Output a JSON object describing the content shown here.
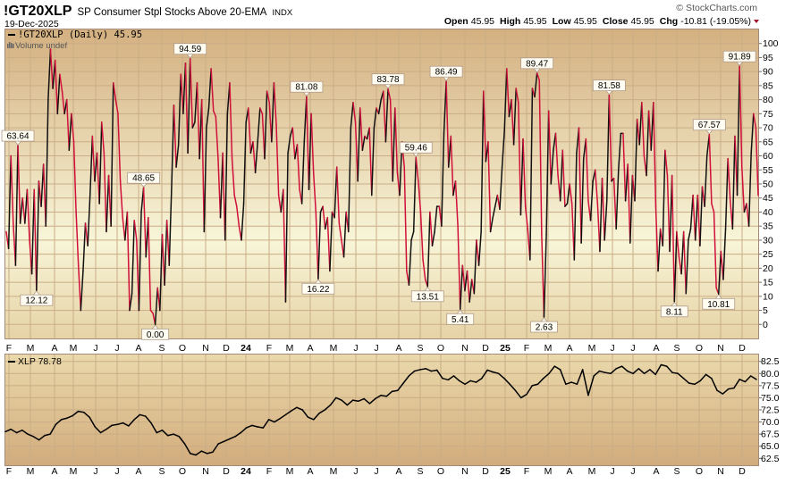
{
  "header": {
    "symbol": "!GT20XLP",
    "description": "SP Consumer Stpl Stocks Above 20-EMA",
    "exchange": "INDX",
    "date": "19-Dec-2025",
    "copyright": "© StockCharts.com",
    "ohlc": {
      "open_label": "Open",
      "open": "45.95",
      "high_label": "High",
      "high": "45.95",
      "low_label": "Low",
      "low": "45.95",
      "close_label": "Close",
      "close": "45.95",
      "chg_label": "Chg",
      "chg": "-10.81 (-19.05%)",
      "chg_direction": "down"
    }
  },
  "colors": {
    "rising": "#111111",
    "falling": "#d0103a",
    "down_arrow": "#a0102a",
    "panel_top": "#d4b080",
    "panel_mid": "#f8f5d8",
    "grid": "#c9ad86"
  },
  "chart_data": [
    {
      "type": "line",
      "legend": "!GT20XLP (Daily) 45.95",
      "volume_note": "Volume undef",
      "ylim": [
        0,
        100
      ],
      "y_ticks": [
        "100",
        "95",
        "90",
        "85",
        "80",
        "75",
        "70",
        "65",
        "60",
        "55",
        "50",
        "45",
        "40",
        "35",
        "30",
        "25",
        "20",
        "15",
        "10",
        "5",
        "0"
      ],
      "x_ticks": [
        "F",
        "M",
        "A",
        "M",
        "J",
        "J",
        "A",
        "S",
        "O",
        "N",
        "D",
        "24",
        "F",
        "M",
        "A",
        "M",
        "J",
        "J",
        "A",
        "S",
        "O",
        "N",
        "D",
        "25",
        "F",
        "M",
        "A",
        "M",
        "J",
        "J",
        "A",
        "S",
        "O",
        "N",
        "D"
      ],
      "grid": true,
      "coloring": "black when rising, red when falling",
      "values": [
        33,
        27,
        60,
        36,
        21,
        63.64,
        36,
        45,
        36,
        48,
        30,
        18,
        48,
        12.12,
        51,
        42,
        57,
        35,
        80,
        98,
        84,
        94,
        75,
        89,
        83,
        75,
        80,
        62,
        75,
        65,
        40,
        21,
        5,
        19,
        36,
        28,
        46,
        67,
        51,
        61,
        43,
        72,
        61,
        33,
        53,
        35,
        86,
        80,
        75,
        51,
        38,
        30,
        40,
        5,
        11,
        37,
        30,
        5,
        40,
        48.65,
        24,
        38,
        5,
        4,
        0,
        13,
        5,
        32,
        14,
        37,
        21,
        48,
        78,
        56,
        64,
        89,
        75,
        93,
        61,
        94.59,
        70,
        72,
        86,
        59,
        80,
        33,
        70,
        77,
        91,
        76,
        74,
        59,
        38,
        61,
        30,
        75,
        86,
        59,
        46,
        42,
        35,
        30,
        43,
        72,
        77,
        61,
        65,
        54,
        65,
        77,
        75,
        59,
        83,
        79,
        65,
        86,
        71,
        46,
        40,
        48,
        8,
        61,
        67,
        70,
        59,
        64,
        48,
        43,
        65,
        81.08,
        48,
        75,
        54,
        40,
        16.22,
        40,
        42,
        34,
        38,
        19,
        40,
        38,
        56,
        36,
        30,
        24,
        40,
        33,
        70,
        79,
        72,
        51,
        77,
        62,
        67,
        66,
        70,
        46,
        70,
        77,
        75,
        80,
        83,
        65,
        83.78,
        80,
        51,
        77,
        54,
        46,
        65,
        56,
        19,
        14,
        30,
        33,
        59.46,
        51,
        40,
        23,
        16,
        13.51,
        40,
        28,
        33,
        42,
        42,
        35,
        68,
        86.49,
        56,
        67,
        46,
        51,
        35,
        5.41,
        21,
        12,
        19,
        8,
        16,
        11,
        30,
        21,
        33,
        83,
        58,
        65,
        33,
        38,
        42,
        46,
        41,
        56,
        69,
        91,
        74,
        80,
        64,
        84,
        79,
        39,
        66,
        42,
        34,
        23,
        84,
        81,
        89.47,
        87,
        32,
        2.63,
        32,
        76,
        50,
        62,
        68,
        53,
        44,
        62,
        42,
        43,
        50,
        43,
        23,
        61,
        70,
        29,
        59,
        66,
        44,
        37,
        51,
        55,
        43,
        26,
        52,
        30,
        44,
        81.58,
        51,
        52,
        34,
        55,
        68,
        68,
        44,
        57,
        29,
        53,
        44,
        73,
        64,
        79,
        60,
        53,
        76,
        62,
        79,
        42,
        19,
        34,
        28,
        62,
        53,
        26,
        53,
        8.11,
        33,
        24,
        18,
        33,
        11,
        30,
        34,
        46,
        30,
        46,
        28,
        49,
        42,
        60,
        67.57,
        43,
        40,
        13,
        10.81,
        26,
        16,
        34,
        59,
        44,
        34,
        67,
        46,
        91.89,
        56,
        40,
        43,
        35,
        61,
        75,
        70,
        45.95
      ],
      "annotations": [
        {
          "value": 63.64,
          "text": "63.64",
          "position": "above"
        },
        {
          "value": 12.12,
          "text": "12.12",
          "position": "below"
        },
        {
          "value": 94.59,
          "text": "94.59",
          "position": "above"
        },
        {
          "value": 48.65,
          "text": "48.65",
          "position": "above"
        },
        {
          "value": 0,
          "text": "0.00",
          "position": "below"
        },
        {
          "value": 81.08,
          "text": "81.08",
          "position": "above"
        },
        {
          "value": 16.22,
          "text": "16.22",
          "position": "below"
        },
        {
          "value": 83.78,
          "text": "83.78",
          "position": "above"
        },
        {
          "value": 59.46,
          "text": "59.46",
          "position": "above"
        },
        {
          "value": 13.51,
          "text": "13.51",
          "position": "below"
        },
        {
          "value": 86.49,
          "text": "86.49",
          "position": "above"
        },
        {
          "value": 5.41,
          "text": "5.41",
          "position": "below"
        },
        {
          "value": 89.47,
          "text": "89.47",
          "position": "above"
        },
        {
          "value": 2.63,
          "text": "2.63",
          "position": "below"
        },
        {
          "value": 81.58,
          "text": "81.58",
          "position": "above"
        },
        {
          "value": 8.11,
          "text": "8.11",
          "position": "below"
        },
        {
          "value": 67.57,
          "text": "67.57",
          "position": "above"
        },
        {
          "value": 10.81,
          "text": "10.81",
          "position": "below"
        },
        {
          "value": 91.89,
          "text": "91.89",
          "position": "above"
        }
      ]
    },
    {
      "type": "line",
      "legend": "XLP 78.78",
      "ylim": [
        62.5,
        82.5
      ],
      "y_ticks": [
        "82.5",
        "80.0",
        "77.5",
        "75.0",
        "72.5",
        "70.0",
        "67.5",
        "65.0",
        "62.5"
      ],
      "x_ticks": [
        "F",
        "M",
        "A",
        "M",
        "J",
        "J",
        "A",
        "S",
        "O",
        "N",
        "D",
        "24",
        "F",
        "M",
        "A",
        "M",
        "J",
        "J",
        "A",
        "S",
        "O",
        "N",
        "D",
        "25",
        "F",
        "M",
        "A",
        "M",
        "J",
        "J",
        "A",
        "S",
        "O",
        "N",
        "D"
      ],
      "grid": true,
      "values": [
        68,
        68.5,
        67.8,
        68.3,
        67.5,
        67.0,
        66.3,
        67.2,
        67.5,
        69.5,
        70.5,
        70.8,
        71.3,
        72.2,
        72.0,
        71.0,
        69.0,
        67.8,
        68.5,
        69.3,
        69.5,
        69.8,
        69.2,
        70.5,
        71.5,
        71.2,
        69.8,
        67.8,
        68.3,
        67.2,
        67.5,
        67.0,
        65.5,
        63.5,
        63.2,
        64.0,
        63.5,
        63.8,
        65.5,
        66.0,
        66.5,
        67.0,
        67.8,
        68.8,
        69.3,
        69.0,
        68.8,
        70.5,
        70.0,
        70.7,
        71.5,
        72.3,
        73.0,
        72.5,
        71.0,
        70.5,
        71.8,
        72.5,
        73.5,
        75.0,
        74.5,
        73.5,
        74.5,
        74.3,
        74.8,
        73.8,
        74.8,
        75.5,
        75.3,
        76.3,
        76.5,
        78.0,
        79.5,
        80.5,
        80.8,
        81.0,
        80.5,
        80.7,
        79.0,
        78.7,
        79.5,
        78.5,
        77.8,
        78.5,
        78.2,
        79.0,
        80.7,
        80.3,
        80.0,
        79.0,
        77.8,
        76.5,
        75.0,
        75.7,
        77.5,
        77.8,
        79.0,
        80.0,
        81.5,
        80.8,
        77.8,
        78.2,
        77.8,
        80.8,
        75.5,
        79.5,
        80.5,
        80.2,
        80.0,
        81.0,
        81.5,
        80.5,
        80.0,
        81.0,
        80.0,
        80.8,
        79.8,
        81.8,
        81.5,
        80.2,
        80.0,
        79.0,
        78.0,
        77.8,
        78.5,
        79.8,
        79.0,
        76.5,
        75.8,
        76.8,
        77.0,
        78.8,
        78.3,
        79.5,
        78.78
      ]
    }
  ]
}
